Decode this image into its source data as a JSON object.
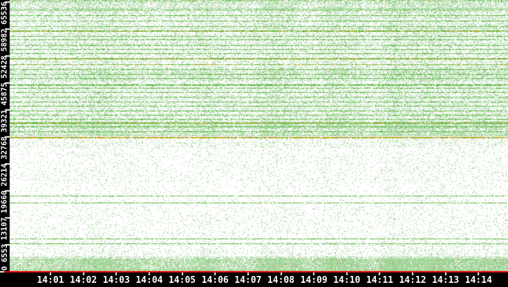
{
  "chart_data": {
    "type": "scatter",
    "title": "",
    "xlabel": "",
    "ylabel": "",
    "point_style": "1px pixel dots",
    "grid": false,
    "legend": null,
    "colors": {
      "background": "#ffffff",
      "dot_green": "#a0d498",
      "line_green": "#55b033",
      "yellow": "#ccaa11",
      "orange": "#dd8822",
      "red_speck": "#cc2a11",
      "axis_line_red": "#ee0000",
      "axis_strip_black": "#000000",
      "tick_white": "#ffffff",
      "label_text": "#ffffff"
    },
    "x_axis": {
      "tick_labels": [
        "14:01",
        "14:02",
        "14:03",
        "14:04",
        "14:05",
        "14:06",
        "14:07",
        "14:08",
        "14:09",
        "14:10",
        "14:11",
        "14:12",
        "14:13",
        "14:14"
      ],
      "visible_span_minutes": 15
    },
    "y_axis": {
      "tick_labels": [
        "65536",
        "58982",
        "52428",
        "45875",
        "39321",
        "32768",
        "26214",
        "19660",
        "13107",
        "6553",
        "0"
      ],
      "tick_values": [
        65536,
        58982,
        52428,
        45875,
        39321,
        32768,
        26214,
        19660,
        13107,
        6553,
        0
      ],
      "range": [
        0,
        65536
      ]
    },
    "density_bands": [
      [
        65370,
        62850,
        0.42
      ],
      [
        62850,
        55790,
        0.3
      ],
      [
        55790,
        49400,
        0.27
      ],
      [
        49400,
        46210,
        0.45
      ],
      [
        46210,
        39490,
        0.27
      ],
      [
        39490,
        36470,
        0.33
      ],
      [
        36470,
        32850,
        0.52
      ],
      [
        32350,
        29910,
        0.15
      ],
      [
        29910,
        21850,
        0.08
      ],
      [
        21850,
        15460,
        0.065
      ],
      [
        15460,
        9580,
        0.08
      ],
      [
        9580,
        7060,
        0.1
      ],
      [
        7060,
        3530,
        0.12
      ],
      [
        3530,
        0,
        0.82
      ]
    ],
    "hlines": [
      [
        63480,
        "g",
        1
      ],
      [
        62140,
        "g",
        1
      ],
      [
        60790,
        "g",
        1
      ],
      [
        59450,
        "g",
        1
      ],
      [
        58400,
        "y",
        2
      ],
      [
        57130,
        "g",
        1
      ],
      [
        56290,
        "g",
        1
      ],
      [
        54950,
        "g",
        1
      ],
      [
        53940,
        "g",
        1
      ],
      [
        52930,
        "g",
        1
      ],
      [
        51760,
        "y",
        2
      ],
      [
        50240,
        "y",
        1
      ],
      [
        49070,
        "g",
        1
      ],
      [
        47890,
        "g",
        1
      ],
      [
        46880,
        "g",
        1
      ],
      [
        45370,
        "g",
        2
      ],
      [
        44530,
        "g",
        1
      ],
      [
        43520,
        "g",
        1
      ],
      [
        42350,
        "g",
        1
      ],
      [
        41170,
        "g",
        1
      ],
      [
        40160,
        "g",
        1
      ],
      [
        38990,
        "g",
        1
      ],
      [
        37980,
        "g",
        1
      ],
      [
        36970,
        "g",
        1
      ],
      [
        36130,
        "y",
        2
      ],
      [
        35120,
        "g",
        1
      ],
      [
        33940,
        "g",
        1
      ],
      [
        18310,
        "g",
        1
      ],
      [
        16640,
        "g",
        1
      ],
      [
        7900,
        "g",
        1
      ],
      [
        6720,
        "g",
        1
      ]
    ],
    "special_lines": {
      "port_32768_line": {
        "port": 32768,
        "colors": [
          "yellow",
          "orange",
          "green"
        ],
        "width": 2
      },
      "top_edge_line": {
        "port": 65500,
        "colors": [
          "green",
          "orange"
        ],
        "width": 3
      },
      "baseline": {
        "value": 0,
        "color": "#ee0000",
        "width": 2
      }
    }
  }
}
